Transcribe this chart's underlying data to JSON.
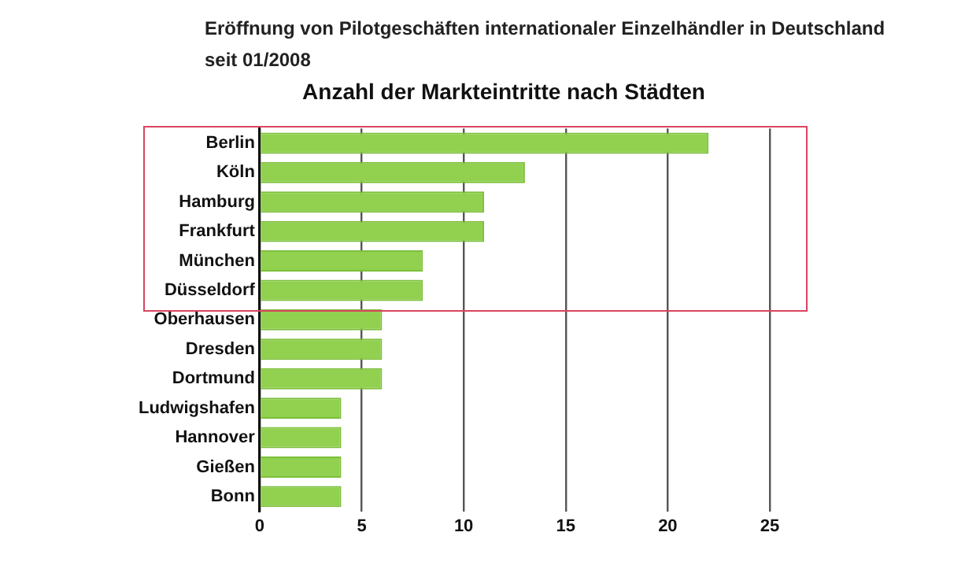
{
  "chart_data": {
    "type": "bar",
    "orientation": "horizontal",
    "title": "Eröffnung von Pilotgeschäften internationaler Einzelhändler in Deutschland seit 01/2008",
    "subtitle": "Anzahl der Markteintritte nach Städten",
    "categories": [
      "Berlin",
      "Köln",
      "Hamburg",
      "Frankfurt",
      "München",
      "Düsseldorf",
      "Oberhausen",
      "Dresden",
      "Dortmund",
      "Ludwigshafen",
      "Hannover",
      "Gießen",
      "Bonn"
    ],
    "values": [
      22,
      13,
      11,
      11,
      8,
      8,
      6,
      6,
      6,
      4,
      4,
      4,
      4
    ],
    "color": "#92d050",
    "xlim": [
      0,
      25
    ],
    "xticks": [
      0,
      5,
      10,
      15,
      20,
      25
    ],
    "grid": "x",
    "legend": false
  }
}
